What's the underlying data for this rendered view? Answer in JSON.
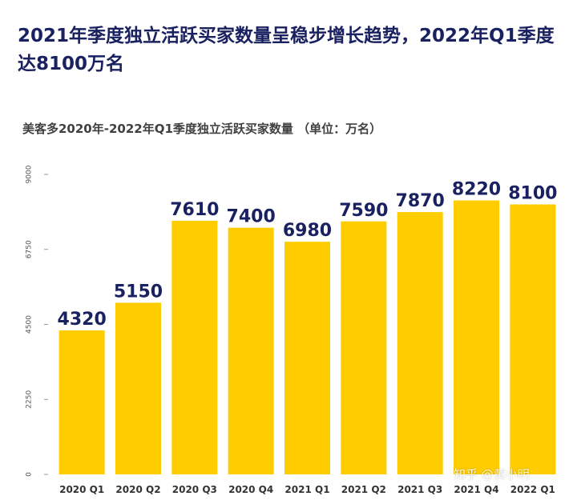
{
  "header": {
    "title": "2021年季度独立活跃买家数量呈稳步增长趋势，2022年Q1季度达8100万名",
    "subtitle": "美客多2020年-2022年Q1季度独立活跃买家数量 （单位：万名）"
  },
  "watermark": "知乎 @黄小明",
  "colors": {
    "bar": "#FFCC00",
    "label": "#1a2160",
    "title": "#1a2160"
  },
  "chart_data": {
    "type": "bar",
    "title": "美客多2020年-2022年Q1季度独立活跃买家数量 （单位：万名）",
    "xlabel": "",
    "ylabel": "",
    "categories": [
      "2020 Q1",
      "2020 Q2",
      "2020 Q3",
      "2020 Q4",
      "2021 Q1",
      "2021 Q2",
      "2021 Q3",
      "2021 Q4",
      "2022 Q1"
    ],
    "values": [
      4320,
      5150,
      7610,
      7400,
      6980,
      7590,
      7870,
      8220,
      8100
    ],
    "ylim": [
      0,
      9000
    ],
    "yticks": [
      0,
      2250,
      4500,
      6750,
      9000
    ],
    "grid": false,
    "legend": "none"
  }
}
